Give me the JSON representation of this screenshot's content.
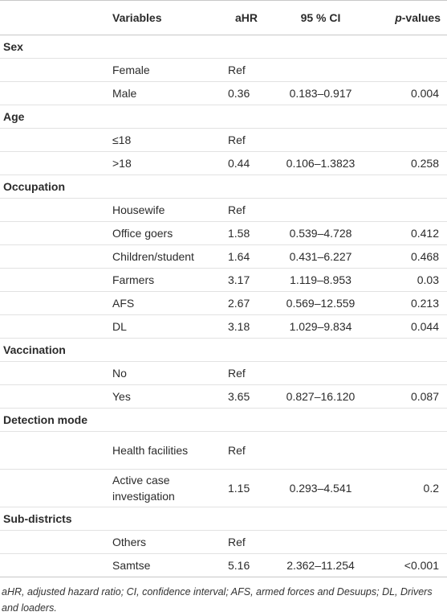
{
  "header": {
    "variables": "Variables",
    "ahr": "aHR",
    "ci": "95 % CI",
    "p_prefix": "p",
    "p_suffix": "-values"
  },
  "sections": [
    {
      "title": "Sex",
      "rows": [
        {
          "var": "Female",
          "ahr": "Ref",
          "ci": "",
          "p": ""
        },
        {
          "var": "Male",
          "ahr": "0.36",
          "ci": "0.183–0.917",
          "p": "0.004"
        }
      ]
    },
    {
      "title": "Age",
      "rows": [
        {
          "var": "≤18",
          "ahr": "Ref",
          "ci": "",
          "p": ""
        },
        {
          "var": ">18",
          "ahr": "0.44",
          "ci": "0.106–1.3823",
          "p": "0.258"
        }
      ]
    },
    {
      "title": "Occupation",
      "rows": [
        {
          "var": "Housewife",
          "ahr": "Ref",
          "ci": "",
          "p": ""
        },
        {
          "var": "Office goers",
          "ahr": "1.58",
          "ci": "0.539–4.728",
          "p": "0.412"
        },
        {
          "var": "Children/student",
          "ahr": "1.64",
          "ci": "0.431–6.227",
          "p": "0.468"
        },
        {
          "var": "Farmers",
          "ahr": "3.17",
          "ci": "1.119–8.953",
          "p": "0.03"
        },
        {
          "var": "AFS",
          "ahr": "2.67",
          "ci": "0.569–12.559",
          "p": "0.213"
        },
        {
          "var": "DL",
          "ahr": "3.18",
          "ci": "1.029–9.834",
          "p": "0.044"
        }
      ]
    },
    {
      "title": "Vaccination",
      "rows": [
        {
          "var": "No",
          "ahr": "Ref",
          "ci": "",
          "p": ""
        },
        {
          "var": "Yes",
          "ahr": "3.65",
          "ci": "0.827–16.120",
          "p": "0.087"
        }
      ]
    },
    {
      "title": "Detection mode",
      "rows": [
        {
          "var": "Health facilities",
          "ahr": "Ref",
          "ci": "",
          "p": "",
          "tall": true
        },
        {
          "var": "Active case investigation",
          "ahr": "1.15",
          "ci": "0.293–4.541",
          "p": "0.2",
          "tall": true
        }
      ]
    },
    {
      "title": "Sub-districts",
      "rows": [
        {
          "var": "Others",
          "ahr": "Ref",
          "ci": "",
          "p": ""
        },
        {
          "var": "Samtse",
          "ahr": "5.16",
          "ci": "2.362–11.254",
          "p": "<0.001"
        }
      ]
    }
  ],
  "footnote": "aHR, adjusted hazard ratio; CI, confidence interval; AFS, armed forces and Desuups; DL, Drivers and loaders."
}
